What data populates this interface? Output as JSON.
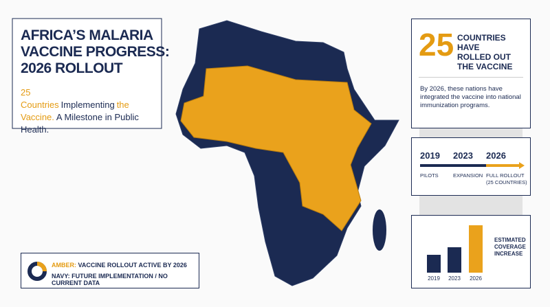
{
  "header": {
    "title_lines": [
      "AFRICA’S MALARIA",
      "VACCINE PROGRESS:",
      "2026 ROLLOUT"
    ],
    "subtitle_parts": [
      {
        "text": "25 Countries",
        "highlight": true
      },
      {
        "text": "Implementing",
        "highlight": false
      },
      {
        "text": "the Vaccine.",
        "highlight": true
      },
      {
        "text": "A Milestone in Public Health.",
        "highlight": false
      }
    ]
  },
  "legend": {
    "amber_key": "AMBER:",
    "amber_text": "VACCINE ROLLOUT ACTIVE BY 2026",
    "navy_text": "NAVY: FUTURE IMPLEMENTATION / NO CURRENT DATA"
  },
  "stat": {
    "number": "25",
    "label_lines": [
      "COUNTRIES HAVE",
      "ROLLED OUT",
      "THE VACCINE"
    ],
    "description": "By 2026, these nations have integrated the vaccine into national immunization programs."
  },
  "timeline": {
    "years": [
      "2019",
      "2023",
      "2026"
    ],
    "labels": [
      "PILOTS",
      "EXPANSION",
      "FULL ROLLOUT (25 COUNTRIES)"
    ]
  },
  "coverage": {
    "label": "ESTIMATED COVERAGE INCREASE",
    "categories": [
      "2019",
      "2023",
      "2026"
    ],
    "values": [
      26,
      37,
      69
    ],
    "colors": [
      "#1b2a52",
      "#1b2a52",
      "#eaa21c"
    ]
  }
}
